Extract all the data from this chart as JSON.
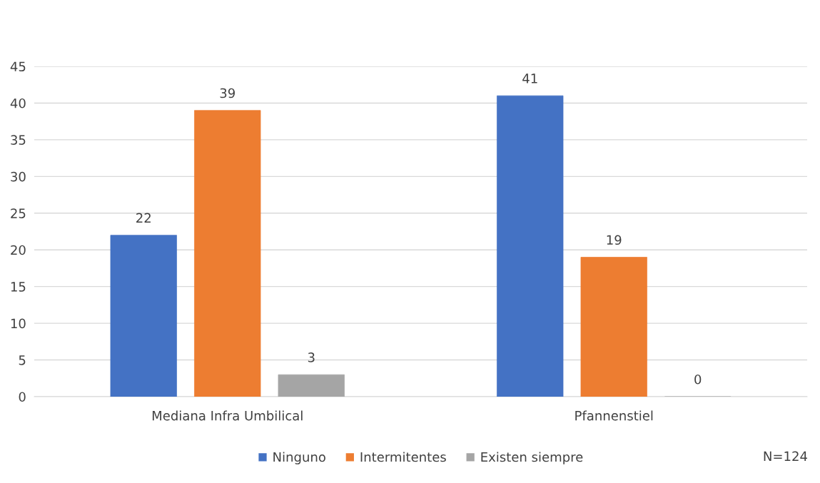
{
  "chart_data": {
    "type": "bar",
    "categories": [
      "Mediana Infra Umbilical",
      "Pfannenstiel"
    ],
    "series": [
      {
        "name": "Ninguno",
        "color": "#4472c4",
        "values": [
          22,
          41
        ]
      },
      {
        "name": "Intermitentes",
        "color": "#ed7d31",
        "values": [
          39,
          19
        ]
      },
      {
        "name": "Existen siempre",
        "color": "#a5a5a5",
        "values": [
          3,
          0
        ]
      }
    ],
    "ylim": [
      0,
      45
    ],
    "yticks": [
      0,
      5,
      10,
      15,
      20,
      25,
      30,
      35,
      40,
      45
    ],
    "grid": "y",
    "legend": "bottom",
    "data_labels": true,
    "annotations": [
      "N=124"
    ]
  }
}
